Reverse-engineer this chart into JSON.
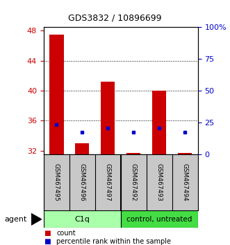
{
  "title": "GDS3832 / 10896699",
  "samples": [
    "GSM467495",
    "GSM467496",
    "GSM467497",
    "GSM467492",
    "GSM467493",
    "GSM467494"
  ],
  "count_values": [
    47.5,
    33.0,
    41.2,
    31.7,
    40.0,
    31.7
  ],
  "count_base": 31.5,
  "percentile_left_values": [
    35.5,
    34.5,
    35.0,
    34.5,
    35.0,
    34.5
  ],
  "ylim_left": [
    31.5,
    48.5
  ],
  "yticks_left": [
    32,
    36,
    40,
    44,
    48
  ],
  "ylim_right": [
    0,
    100
  ],
  "yticks_right": [
    0,
    25,
    50,
    75,
    100
  ],
  "ytick_labels_right": [
    "0",
    "25",
    "50",
    "75",
    "100%"
  ],
  "bar_color": "#CC0000",
  "dot_color": "#0000CC",
  "left_tick_color": "#CC0000",
  "right_tick_color": "#0000CC",
  "gridlines_at": [
    36,
    40,
    44
  ],
  "c1q_color": "#AAFFAA",
  "ctrl_color": "#44DD44",
  "grey_color": "#C8C8C8",
  "agent_label": "agent",
  "c1q_label": "C1q",
  "ctrl_label": "control, untreated",
  "legend_count_label": "count",
  "legend_pct_label": "percentile rank within the sample",
  "bar_width": 0.55
}
